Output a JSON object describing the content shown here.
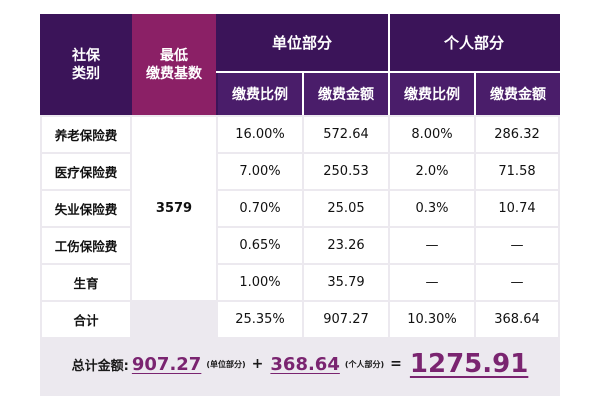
{
  "header": {
    "category_line1": "社保",
    "category_line2": "类别",
    "min_base_line1": "最低",
    "min_base_line2": "缴费基数",
    "unit_part": "单位部分",
    "personal_part": "个人部分",
    "unit_rate": "缴费比例",
    "unit_amount": "缴费金额",
    "personal_rate": "缴费比例",
    "personal_amount": "缴费金额"
  },
  "min_base_value": "3579",
  "rows": [
    {
      "category": "养老保险费",
      "unit_rate": "16.00%",
      "unit_amount": "572.64",
      "personal_rate": "8.00%",
      "personal_amount": "286.32"
    },
    {
      "category": "医疗保险费",
      "unit_rate": "7.00%",
      "unit_amount": "250.53",
      "personal_rate": "2.0%",
      "personal_amount": "71.58"
    },
    {
      "category": "失业保险费",
      "unit_rate": "0.70%",
      "unit_amount": "25.05",
      "personal_rate": "0.3%",
      "personal_amount": "10.74"
    },
    {
      "category": "工伤保险费",
      "unit_rate": "0.65%",
      "unit_amount": "23.26",
      "personal_rate": "—",
      "personal_amount": "—"
    },
    {
      "category": "生育",
      "unit_rate": "1.00%",
      "unit_amount": "35.79",
      "personal_rate": "—",
      "personal_amount": "—"
    }
  ],
  "total_row": {
    "category": "合计",
    "unit_rate": "25.35%",
    "unit_amount": "907.27",
    "personal_rate": "10.30%",
    "personal_amount": "368.64"
  },
  "summary": {
    "label": "总计金额:",
    "unit_total": "907.27",
    "unit_note": "(单位部分)",
    "plus": "+",
    "personal_total": "368.64",
    "personal_note": "(个人部分)",
    "equals": "=",
    "grand_total": "1275.91"
  },
  "colors": {
    "header_bg": "#3b1459",
    "min_base_header": "#8b2066",
    "accent_text": "#7a2470",
    "card_bg": "#ece9ef"
  }
}
